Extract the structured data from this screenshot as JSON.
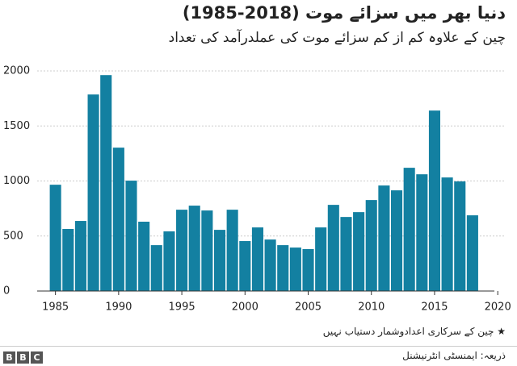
{
  "chart_data": {
    "type": "bar",
    "title": "دنیا بھر میں سزائے موت (2018-1985)",
    "subtitle": "چین کے علاوہ کم از کم سزائے موت کی عملدرآمد کی تعداد",
    "x": [
      1985,
      1986,
      1987,
      1988,
      1989,
      1990,
      1991,
      1992,
      1993,
      1994,
      1995,
      1996,
      1997,
      1998,
      1999,
      2000,
      2001,
      2002,
      2003,
      2004,
      2005,
      2006,
      2007,
      2008,
      2009,
      2010,
      2011,
      2012,
      2013,
      2014,
      2015,
      2016,
      2017,
      2018
    ],
    "values": [
      966,
      564,
      637,
      1786,
      1962,
      1303,
      1003,
      630,
      417,
      542,
      739,
      776,
      732,
      556,
      739,
      454,
      578,
      468,
      417,
      395,
      381,
      578,
      783,
      673,
      717,
      827,
      959,
      915,
      1120,
      1061,
      1640,
      1032,
      996,
      688
    ],
    "color": "#1380a1",
    "xlim": [
      1984,
      2020.5
    ],
    "xticks": [
      1985,
      1990,
      1995,
      2000,
      2005,
      2010,
      2015,
      2020
    ],
    "ylim": [
      0,
      2000
    ],
    "yticks": [
      0,
      500,
      1000,
      1500,
      2000
    ],
    "grid": true,
    "note": "★ چین کے سرکاری اعدادوشمار دستیاب نہیں",
    "source": "ذریعہ: ایمنسٹی انٹرنیشنل",
    "logo": [
      "B",
      "B",
      "C"
    ]
  }
}
